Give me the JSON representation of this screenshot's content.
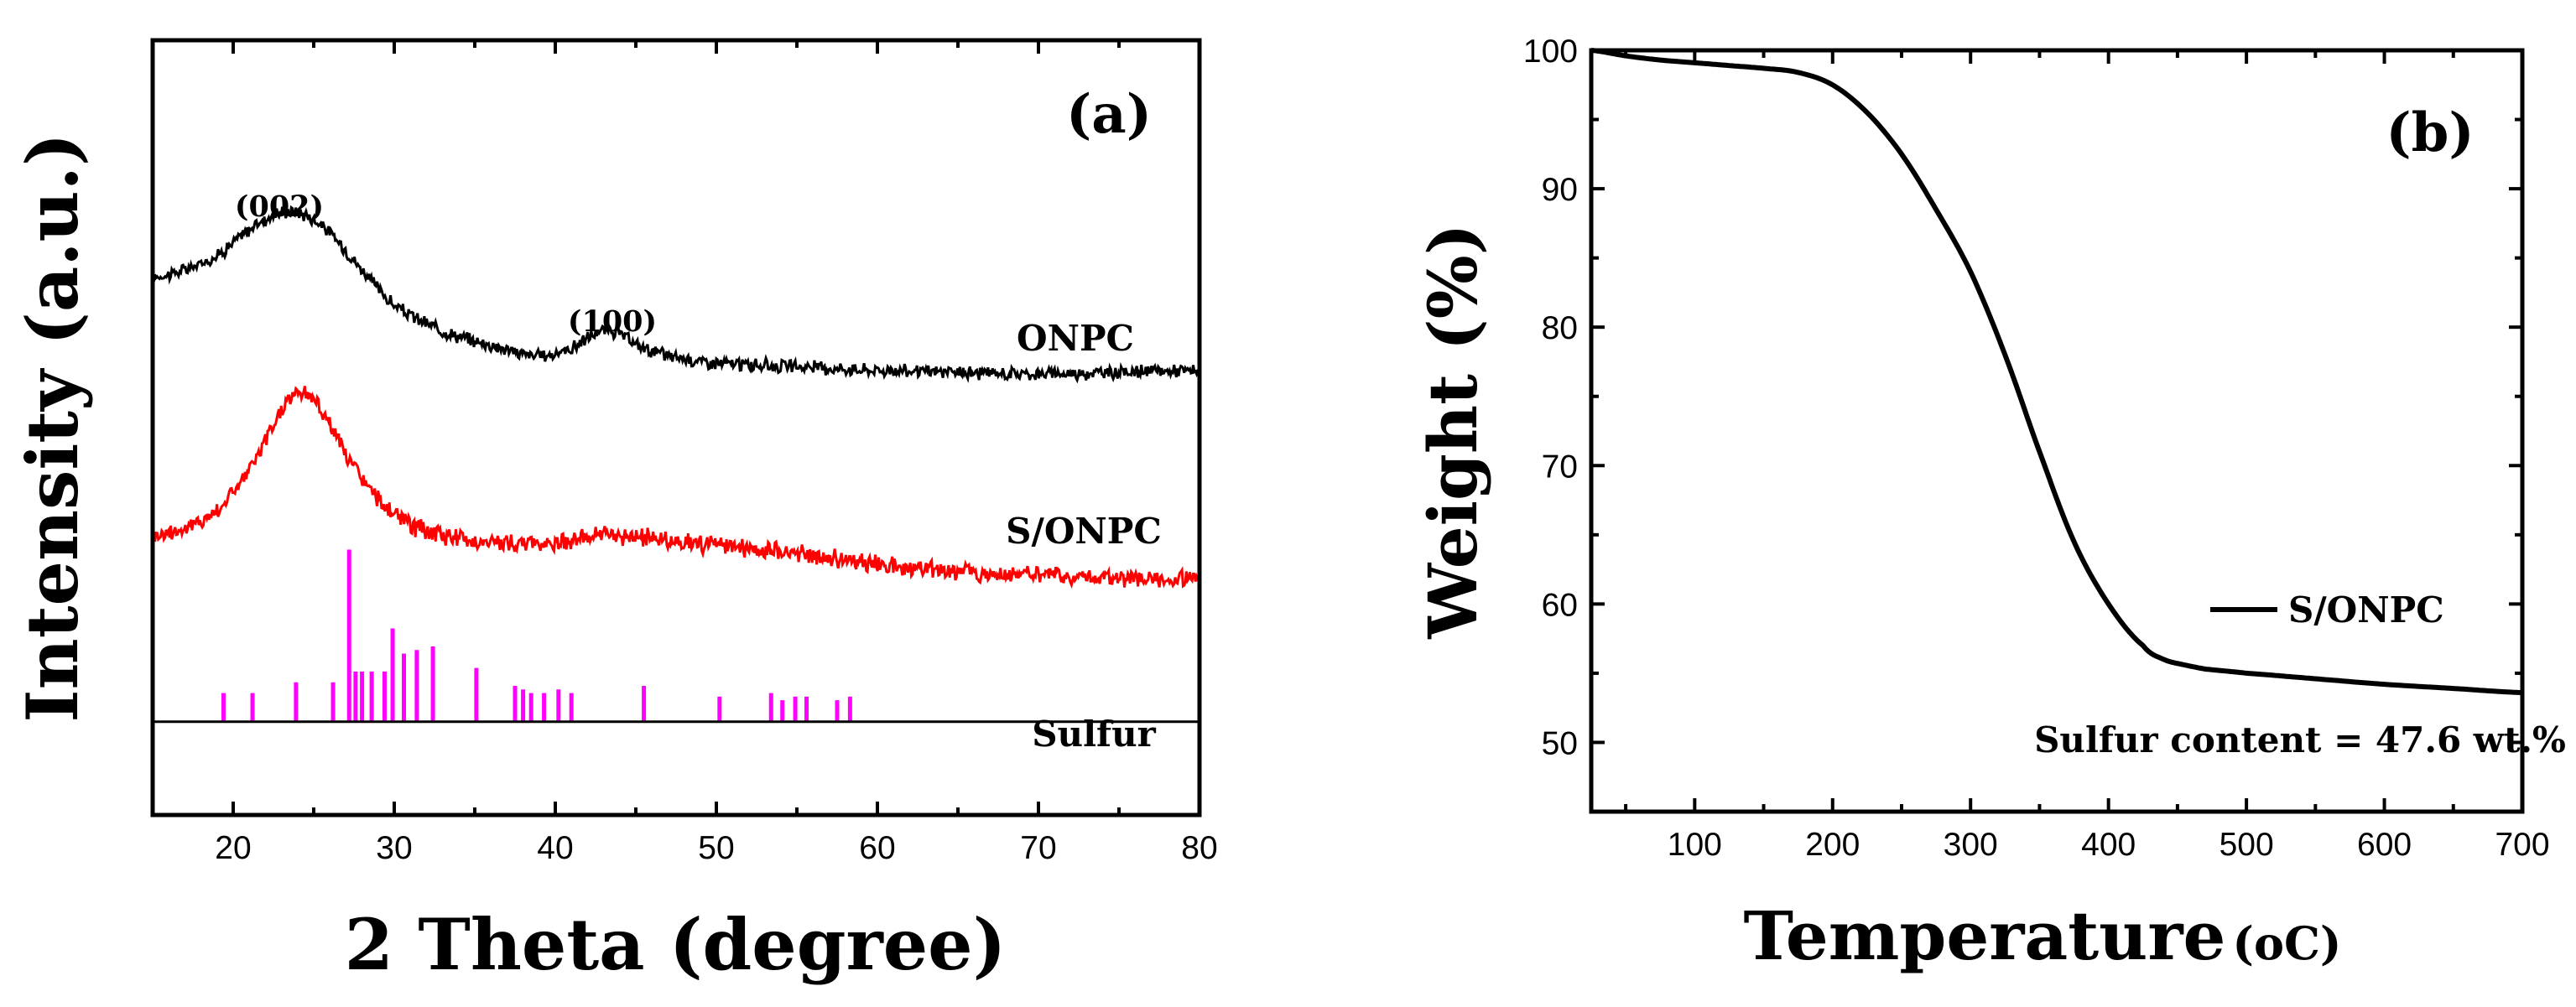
{
  "chart_data": [
    {
      "type": "line",
      "panel_label": "(a)",
      "xlabel": "2 Theta (degree)",
      "ylabel": "Intensity (a.u.)",
      "xlim": [
        15,
        80
      ],
      "xticks": [
        20,
        30,
        40,
        50,
        60,
        70,
        80
      ],
      "xtick_labels": [
        "20",
        "30",
        "40",
        "50",
        "60",
        "70",
        "80"
      ],
      "y_units": "arbitrary (stacked patterns, 0–100)",
      "ylim": [
        -8,
        100
      ],
      "series": [
        {
          "name": "ONPC",
          "color": "#000000",
          "x": [
            15,
            17,
            19,
            21,
            22,
            23,
            24,
            25,
            26,
            28,
            30,
            33,
            36,
            39,
            41,
            42,
            43,
            44,
            45,
            47,
            50,
            55,
            60,
            70,
            80
          ],
          "y": [
            67,
            68,
            70,
            73.5,
            75,
            76,
            76,
            75,
            73,
            68,
            63,
            59.5,
            57.5,
            56,
            57,
            58.5,
            59.5,
            59,
            57.5,
            56,
            55,
            54.5,
            54,
            53.5,
            54
          ],
          "noise": 0.7
        },
        {
          "name": "S/ONPC",
          "color": "#ff0000",
          "x": [
            15,
            17,
            19,
            21,
            22,
            23,
            24,
            25,
            26,
            27,
            29,
            31,
            33,
            36,
            40,
            43,
            46,
            50,
            55,
            60,
            65,
            70,
            75,
            80
          ],
          "y": [
            31,
            32,
            34.5,
            40,
            44,
            48.5,
            51,
            50,
            46.5,
            42,
            36,
            32.5,
            31,
            30,
            30,
            31,
            30.5,
            29.5,
            28.5,
            27,
            26,
            25.5,
            25,
            25
          ],
          "noise": 1.0
        }
      ],
      "reference": {
        "name": "Sulfur",
        "color": "#ff00ff",
        "baseline": 5,
        "positions": [
          19.4,
          21.2,
          23.9,
          26.2,
          27.2,
          27.6,
          28.0,
          28.6,
          29.4,
          29.9,
          30.6,
          31.4,
          32.4,
          35.1,
          37.5,
          38.0,
          38.5,
          39.3,
          40.2,
          41.0,
          45.5,
          50.2,
          53.4,
          54.1,
          54.9,
          55.6,
          57.5,
          58.3
        ],
        "heights": [
          4,
          4,
          5.5,
          5.5,
          24,
          7,
          7,
          7,
          7,
          13,
          9.5,
          10,
          10.5,
          7.5,
          5,
          4.5,
          4,
          4,
          4.5,
          4,
          5,
          3.5,
          4,
          3,
          3.5,
          3.5,
          3,
          3.5
        ]
      },
      "annotations": [
        {
          "text": "(002)",
          "x": 23.5,
          "y": 82
        },
        {
          "text": "(100)",
          "x": 43.5,
          "y": 66
        },
        {
          "text": "ONPC",
          "x": 73,
          "y": 61
        },
        {
          "text": "S/ONPC",
          "x": 73,
          "y": 35
        },
        {
          "text": "Sulfur",
          "x": 73,
          "y": 10
        }
      ]
    },
    {
      "type": "line",
      "panel_label": "(b)",
      "xlabel": "Temperature",
      "xlabel_unit": "(oC)",
      "ylabel": "Weight (%)",
      "xlim": [
        25,
        700
      ],
      "ylim": [
        45,
        100
      ],
      "xticks": [
        100,
        200,
        300,
        400,
        500,
        600,
        700
      ],
      "xtick_labels": [
        "100",
        "200",
        "300",
        "400",
        "500",
        "600",
        "700"
      ],
      "yticks": [
        50,
        60,
        70,
        80,
        90,
        100
      ],
      "ytick_labels": [
        "50",
        "60",
        "70",
        "80",
        "90",
        "100"
      ],
      "series": [
        {
          "name": "S/ONPC",
          "color": "#000000",
          "x": [
            25,
            50,
            75,
            100,
            125,
            150,
            175,
            200,
            225,
            250,
            275,
            300,
            325,
            350,
            375,
            400,
            425,
            440,
            455,
            470,
            500,
            550,
            600,
            650,
            700
          ],
          "y": [
            100,
            99.6,
            99.3,
            99.1,
            98.9,
            98.7,
            98.4,
            97.5,
            95.5,
            92.5,
            88.5,
            84,
            78,
            71,
            64.5,
            60,
            57,
            56,
            55.6,
            55.3,
            55,
            54.6,
            54.2,
            53.9,
            53.6
          ]
        }
      ],
      "annotation": "Sulfur content = 47.6 wt.%",
      "legend": {
        "label": "S/ONPC",
        "placement": "center-right"
      }
    }
  ]
}
